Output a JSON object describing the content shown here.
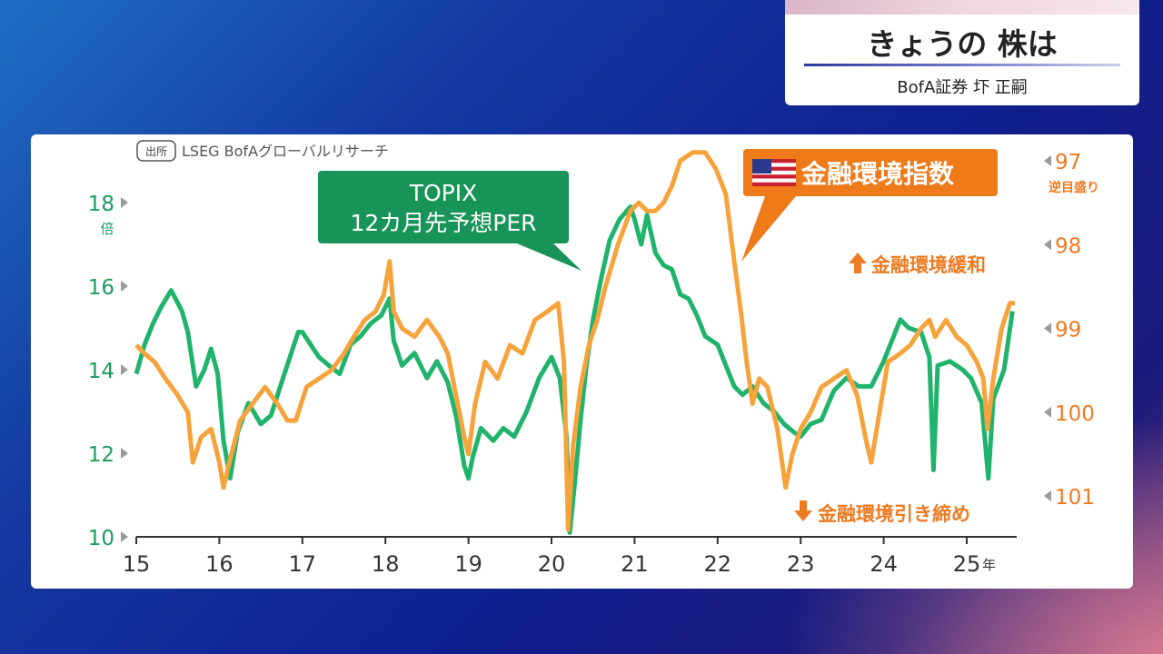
{
  "header": {
    "title": "きょうの 株は",
    "subtitle": "BofA証券 圷 正嗣"
  },
  "chart": {
    "source_badge": "出所",
    "source_text": "LSEG BofAグローバルリサーチ",
    "left_unit": "倍",
    "right_unit": "逆目盛り",
    "year_suffix": "年",
    "topix_label_line1": "TOPIX",
    "topix_label_line2": "12カ月先予想PER",
    "fci_label": "金融環境指数",
    "easing_label": "金融環境緩和",
    "tightening_label": "金融環境引き締め",
    "colors": {
      "topix": "#20b36b",
      "fci": "#f6a33c",
      "left_axis_text": "#1a9c5e",
      "right_axis_text": "#ee7a22",
      "topix_box": "#189458",
      "fci_box": "#ef7a1a"
    },
    "icons": [
      "us-flag-icon",
      "arrow-up-icon",
      "arrow-down-icon"
    ]
  },
  "chart_data": {
    "type": "line",
    "x_ticks": [
      "15",
      "16",
      "17",
      "18",
      "19",
      "20",
      "21",
      "22",
      "23",
      "24",
      "25"
    ],
    "x_range": [
      2015,
      2025.6
    ],
    "y_left": {
      "range": [
        10,
        18
      ],
      "ticks": [
        "10",
        "12",
        "14",
        "16",
        "18"
      ],
      "unit": "倍"
    },
    "y_right": {
      "range": [
        97,
        101
      ],
      "ticks": [
        "97",
        "98",
        "99",
        "100",
        "101"
      ],
      "inverted": true,
      "unit": "逆目盛り"
    },
    "series": [
      {
        "name": "TOPIX 12カ月先予想PER",
        "axis": "left",
        "points": [
          [
            2015.0,
            13.9
          ],
          [
            2015.1,
            14.6
          ],
          [
            2015.2,
            15.1
          ],
          [
            2015.3,
            15.5
          ],
          [
            2015.42,
            15.9
          ],
          [
            2015.55,
            15.4
          ],
          [
            2015.62,
            14.9
          ],
          [
            2015.72,
            13.6
          ],
          [
            2015.82,
            14.0
          ],
          [
            2015.9,
            14.5
          ],
          [
            2015.98,
            13.9
          ],
          [
            2016.05,
            12.3
          ],
          [
            2016.13,
            11.4
          ],
          [
            2016.22,
            12.5
          ],
          [
            2016.35,
            13.2
          ],
          [
            2016.5,
            12.7
          ],
          [
            2016.62,
            12.9
          ],
          [
            2016.75,
            13.7
          ],
          [
            2016.85,
            14.3
          ],
          [
            2016.95,
            14.9
          ],
          [
            2017.0,
            14.9
          ],
          [
            2017.1,
            14.6
          ],
          [
            2017.2,
            14.3
          ],
          [
            2017.32,
            14.1
          ],
          [
            2017.45,
            13.9
          ],
          [
            2017.58,
            14.6
          ],
          [
            2017.7,
            14.8
          ],
          [
            2017.82,
            15.1
          ],
          [
            2017.95,
            15.3
          ],
          [
            2018.05,
            15.7
          ],
          [
            2018.1,
            14.7
          ],
          [
            2018.2,
            14.1
          ],
          [
            2018.35,
            14.4
          ],
          [
            2018.5,
            13.8
          ],
          [
            2018.62,
            14.2
          ],
          [
            2018.75,
            13.7
          ],
          [
            2018.85,
            12.9
          ],
          [
            2018.95,
            11.7
          ],
          [
            2019.0,
            11.4
          ],
          [
            2019.05,
            11.9
          ],
          [
            2019.15,
            12.6
          ],
          [
            2019.3,
            12.3
          ],
          [
            2019.42,
            12.6
          ],
          [
            2019.55,
            12.4
          ],
          [
            2019.7,
            13.0
          ],
          [
            2019.85,
            13.8
          ],
          [
            2020.0,
            14.3
          ],
          [
            2020.1,
            13.8
          ],
          [
            2020.18,
            12.4
          ],
          [
            2020.22,
            10.1
          ],
          [
            2020.28,
            11.3
          ],
          [
            2020.35,
            12.8
          ],
          [
            2020.42,
            14.1
          ],
          [
            2020.5,
            15.2
          ],
          [
            2020.6,
            16.2
          ],
          [
            2020.7,
            17.1
          ],
          [
            2020.82,
            17.6
          ],
          [
            2020.95,
            17.9
          ],
          [
            2021.0,
            17.6
          ],
          [
            2021.08,
            17.0
          ],
          [
            2021.15,
            17.7
          ],
          [
            2021.25,
            16.8
          ],
          [
            2021.35,
            16.5
          ],
          [
            2021.45,
            16.4
          ],
          [
            2021.55,
            15.8
          ],
          [
            2021.65,
            15.7
          ],
          [
            2021.75,
            15.3
          ],
          [
            2021.85,
            14.8
          ],
          [
            2022.0,
            14.6
          ],
          [
            2022.1,
            14.1
          ],
          [
            2022.2,
            13.6
          ],
          [
            2022.3,
            13.4
          ],
          [
            2022.42,
            13.6
          ],
          [
            2022.55,
            13.2
          ],
          [
            2022.68,
            13.0
          ],
          [
            2022.8,
            12.7
          ],
          [
            2022.92,
            12.5
          ],
          [
            2023.0,
            12.4
          ],
          [
            2023.12,
            12.7
          ],
          [
            2023.25,
            12.8
          ],
          [
            2023.4,
            13.5
          ],
          [
            2023.55,
            13.8
          ],
          [
            2023.7,
            13.6
          ],
          [
            2023.85,
            13.6
          ],
          [
            2024.0,
            14.2
          ],
          [
            2024.1,
            14.7
          ],
          [
            2024.2,
            15.2
          ],
          [
            2024.3,
            15.0
          ],
          [
            2024.45,
            14.9
          ],
          [
            2024.55,
            14.3
          ],
          [
            2024.6,
            11.6
          ],
          [
            2024.65,
            14.1
          ],
          [
            2024.8,
            14.2
          ],
          [
            2024.95,
            14.0
          ],
          [
            2025.05,
            13.8
          ],
          [
            2025.18,
            13.2
          ],
          [
            2025.26,
            11.4
          ],
          [
            2025.32,
            13.3
          ],
          [
            2025.45,
            14.0
          ],
          [
            2025.55,
            15.4
          ]
        ]
      },
      {
        "name": "金融環境指数",
        "axis": "right",
        "points": [
          [
            2015.0,
            99.2
          ],
          [
            2015.1,
            99.3
          ],
          [
            2015.22,
            99.4
          ],
          [
            2015.35,
            99.6
          ],
          [
            2015.5,
            99.8
          ],
          [
            2015.62,
            100.0
          ],
          [
            2015.68,
            100.6
          ],
          [
            2015.78,
            100.3
          ],
          [
            2015.9,
            100.2
          ],
          [
            2016.0,
            100.6
          ],
          [
            2016.05,
            100.9
          ],
          [
            2016.12,
            100.6
          ],
          [
            2016.25,
            100.1
          ],
          [
            2016.4,
            99.9
          ],
          [
            2016.55,
            99.7
          ],
          [
            2016.7,
            99.9
          ],
          [
            2016.82,
            100.1
          ],
          [
            2016.92,
            100.1
          ],
          [
            2017.05,
            99.7
          ],
          [
            2017.2,
            99.6
          ],
          [
            2017.35,
            99.5
          ],
          [
            2017.5,
            99.3
          ],
          [
            2017.62,
            99.1
          ],
          [
            2017.75,
            98.9
          ],
          [
            2017.88,
            98.8
          ],
          [
            2017.98,
            98.6
          ],
          [
            2018.05,
            98.2
          ],
          [
            2018.1,
            98.8
          ],
          [
            2018.2,
            99.0
          ],
          [
            2018.35,
            99.1
          ],
          [
            2018.5,
            98.9
          ],
          [
            2018.65,
            99.1
          ],
          [
            2018.75,
            99.3
          ],
          [
            2018.85,
            99.8
          ],
          [
            2018.95,
            100.3
          ],
          [
            2019.0,
            100.5
          ],
          [
            2019.08,
            99.9
          ],
          [
            2019.2,
            99.4
          ],
          [
            2019.35,
            99.6
          ],
          [
            2019.5,
            99.2
          ],
          [
            2019.65,
            99.3
          ],
          [
            2019.8,
            98.9
          ],
          [
            2019.95,
            98.8
          ],
          [
            2020.08,
            98.7
          ],
          [
            2020.15,
            99.4
          ],
          [
            2020.2,
            101.4
          ],
          [
            2020.26,
            100.4
          ],
          [
            2020.35,
            99.7
          ],
          [
            2020.45,
            99.2
          ],
          [
            2020.55,
            98.9
          ],
          [
            2020.65,
            98.5
          ],
          [
            2020.8,
            98.0
          ],
          [
            2020.95,
            97.6
          ],
          [
            2021.05,
            97.5
          ],
          [
            2021.15,
            97.6
          ],
          [
            2021.25,
            97.6
          ],
          [
            2021.35,
            97.5
          ],
          [
            2021.45,
            97.3
          ],
          [
            2021.55,
            97.0
          ],
          [
            2021.7,
            96.9
          ],
          [
            2021.85,
            96.9
          ],
          [
            2021.98,
            97.1
          ],
          [
            2022.1,
            97.4
          ],
          [
            2022.2,
            98.2
          ],
          [
            2022.28,
            98.8
          ],
          [
            2022.35,
            99.4
          ],
          [
            2022.42,
            99.9
          ],
          [
            2022.5,
            99.6
          ],
          [
            2022.6,
            99.7
          ],
          [
            2022.72,
            100.2
          ],
          [
            2022.82,
            100.9
          ],
          [
            2022.9,
            100.5
          ],
          [
            2023.0,
            100.2
          ],
          [
            2023.12,
            100.0
          ],
          [
            2023.25,
            99.7
          ],
          [
            2023.4,
            99.6
          ],
          [
            2023.55,
            99.5
          ],
          [
            2023.68,
            99.8
          ],
          [
            2023.78,
            100.3
          ],
          [
            2023.85,
            100.6
          ],
          [
            2023.95,
            100.0
          ],
          [
            2024.05,
            99.4
          ],
          [
            2024.2,
            99.3
          ],
          [
            2024.32,
            99.2
          ],
          [
            2024.45,
            99.0
          ],
          [
            2024.55,
            98.9
          ],
          [
            2024.62,
            99.1
          ],
          [
            2024.75,
            98.9
          ],
          [
            2024.88,
            99.1
          ],
          [
            2025.0,
            99.2
          ],
          [
            2025.12,
            99.4
          ],
          [
            2025.2,
            99.6
          ],
          [
            2025.25,
            100.2
          ],
          [
            2025.32,
            99.6
          ],
          [
            2025.42,
            99.0
          ],
          [
            2025.52,
            98.7
          ],
          [
            2025.58,
            98.7
          ]
        ]
      }
    ]
  }
}
